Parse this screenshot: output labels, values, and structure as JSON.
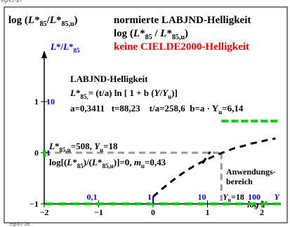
{
  "frame": {
    "top_code": "egr41-3n",
    "bottom_code": "egr41-2a"
  },
  "colors": {
    "black": "#000000",
    "red": "#ff0000",
    "blue": "#0000ff",
    "green": "#00cc00",
    "grey": "#999999"
  },
  "chart_data": {
    "type": "line",
    "title_left": {
      "log": "log (",
      "l": "L",
      "sup": "*",
      "sub": "85",
      "slash": "/",
      "l2": "L",
      "sup2": "*",
      "sub2": "85,u",
      "close": ")"
    },
    "title_center_line1": "normierte LABJND-Helligkeit",
    "title_center_line2": {
      "log": "log (",
      "l": "L",
      "sup": "*",
      "sub": "85",
      "slash": " / ",
      "l2": "L",
      "sup2": "*",
      "sub2": "85,u",
      "close": ")"
    },
    "title_warning": "keine CIELDE2000-Helligkeit",
    "y_axis_label": {
      "l": "L",
      "sup": "*",
      "slash": "/",
      "l2": "L",
      "sup2": "*",
      "sub2": "85"
    },
    "formula_title": "LABJND-Helligkeit",
    "formula": {
      "l": "L",
      "sup": "*",
      "sub": "85,",
      "rest": "= (t/a) ln [ 1 + b (",
      "y": "Y",
      "slash": "/",
      "yu": "Y",
      "yu_sub": "u",
      "end": ")]"
    },
    "params": "a=0,3411   t=88,23    t/a=258,6  b=a · Y",
    "params_sub": "u",
    "params_end": "=6,14",
    "ref_line": {
      "l": "L",
      "sup": "*",
      "sub": "85,u",
      "mid": "=508, ",
      "y": "Y",
      "ysub": "u",
      "end": "=18"
    },
    "ref_line2": {
      "a": "log[(",
      "l": "L",
      "sup": "*",
      "sub": "85",
      "b": ")/(",
      "l2": "L",
      "sup2": "*",
      "sub2": "85,u",
      "c": ")]=0, ",
      "m": "m",
      "msub": "u",
      "d": "=0,43"
    },
    "x_ticks": [
      {
        "value": -2,
        "label": "−2"
      },
      {
        "value": -1,
        "label": "−1"
      },
      {
        "value": 0,
        "label": "0"
      },
      {
        "value": 1,
        "label": "1"
      },
      {
        "value": 2,
        "label": "2"
      }
    ],
    "x_linear_ticks": [
      {
        "value": -1,
        "label": "0,1"
      },
      {
        "value": 0,
        "label": "1"
      },
      {
        "value": 1,
        "label": "10"
      },
      {
        "value": 2,
        "label": "100"
      }
    ],
    "x_linear_unit": "Y",
    "yu_label": {
      "y": "Y",
      "sub": "u",
      "rest": "=18"
    },
    "y_ticks": [
      {
        "value": -1,
        "label": "−1"
      },
      {
        "value": 0,
        "label": "0"
      },
      {
        "value": 1,
        "label": "1"
      }
    ],
    "y_linear_ticks": [
      {
        "value": 1,
        "label": "10"
      },
      {
        "value": 0,
        "label": "1"
      }
    ],
    "x_axis_label": "log Y",
    "application_label": [
      "Anwendungs-",
      "bereich"
    ],
    "xlim": [
      -2.25,
      2.35
    ],
    "ylim": [
      -1.1,
      2.0
    ],
    "series": [
      {
        "style": "dashed",
        "color": "#000000",
        "x": [
          0.0,
          0.15,
          0.3,
          0.45,
          0.6,
          0.75,
          0.9,
          1.05,
          1.2,
          1.35,
          1.5,
          1.65,
          1.8,
          1.95,
          2.1,
          2.25
        ],
        "y": [
          -0.86,
          -0.72,
          -0.59,
          -0.47,
          -0.36,
          -0.26,
          -0.18,
          -0.1,
          -0.03,
          0.03,
          0.09,
          0.13,
          0.18,
          0.21,
          0.25,
          0.28
        ]
      },
      {
        "style": "dashed",
        "color": "#000000",
        "x": [
          0.91,
          0.98,
          1.05
        ],
        "y": [
          -0.21,
          -0.09,
          0.02
        ]
      }
    ],
    "reference_point": {
      "x": 1.255,
      "y": 0.0
    },
    "application_range": [
      1.255,
      2.3
    ]
  }
}
